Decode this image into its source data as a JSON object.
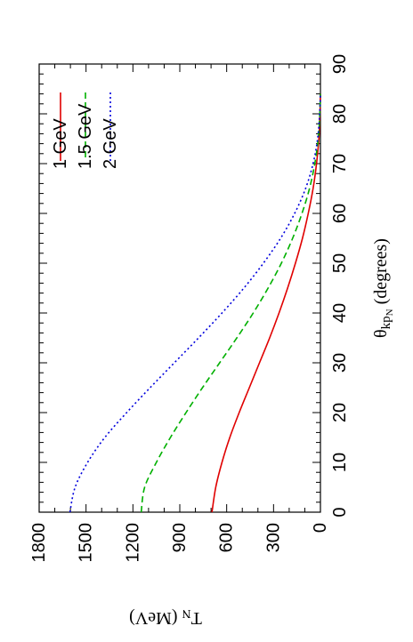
{
  "chart_data": {
    "type": "line",
    "orientation": "rotated 90 degrees counter-clockwise",
    "xlabel": {
      "symbol": "θ",
      "sub": "kp",
      "subsub": "N",
      "rest": " (degrees)"
    },
    "ylabel": {
      "symbol": "T",
      "sub": "N",
      "rest": " (MeV)"
    },
    "xlim": [
      0,
      90
    ],
    "ylim": [
      0,
      1800
    ],
    "x_ticks": [
      "0",
      "10",
      "20",
      "30",
      "40",
      "50",
      "60",
      "70",
      "80",
      "90"
    ],
    "y_ticks": [
      "0",
      "300",
      "600",
      "900",
      "1200",
      "1500",
      "1800"
    ],
    "x_tick_values": [
      0,
      10,
      20,
      30,
      40,
      50,
      60,
      70,
      80,
      90
    ],
    "y_tick_values": [
      0,
      300,
      600,
      900,
      1200,
      1500,
      1800
    ],
    "legend_position": "top-right",
    "grid": false,
    "series": [
      {
        "name": "1 GeV",
        "color": "#e00000",
        "dash": "solid",
        "x": [
          0,
          5,
          10,
          15,
          20,
          25,
          30,
          35,
          40,
          45,
          50,
          55,
          60,
          65,
          70,
          75,
          80,
          84
        ],
        "y": [
          694,
          670,
          630,
          580,
          520,
          455,
          390,
          325,
          265,
          210,
          160,
          115,
          78,
          47,
          25,
          10,
          3,
          0
        ]
      },
      {
        "name": "1.5 GeV",
        "color": "#00b000",
        "dash": "dashed",
        "x": [
          0,
          5,
          10,
          15,
          20,
          25,
          30,
          35,
          40,
          45,
          50,
          55,
          60,
          65,
          70,
          75,
          80,
          84
        ],
        "y": [
          1147,
          1125,
          1050,
          960,
          860,
          755,
          645,
          535,
          430,
          335,
          250,
          178,
          118,
          70,
          36,
          14,
          4,
          0
        ]
      },
      {
        "name": "2 GeV",
        "color": "#0000dd",
        "dash": "dotted",
        "x": [
          0,
          5,
          10,
          15,
          20,
          25,
          30,
          35,
          40,
          45,
          50,
          55,
          60,
          65,
          70,
          75,
          80,
          84
        ],
        "y": [
          1603,
          1570,
          1490,
          1380,
          1240,
          1090,
          935,
          780,
          630,
          490,
          365,
          255,
          165,
          95,
          47,
          18,
          5,
          0
        ]
      }
    ]
  }
}
